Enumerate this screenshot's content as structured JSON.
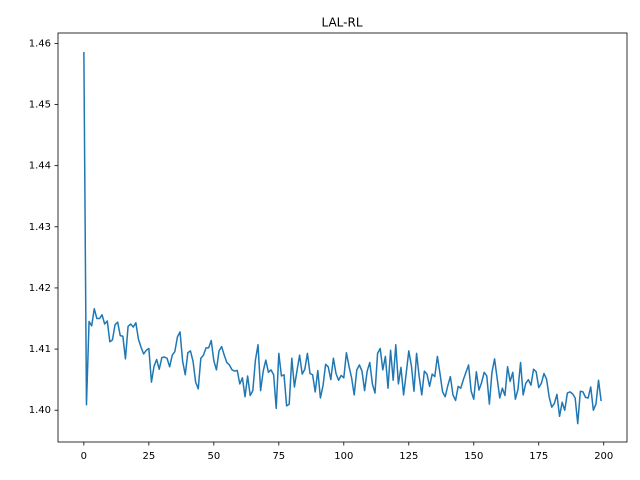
{
  "chart_data": {
    "type": "line",
    "title": "LAL-RL",
    "x": [
      0,
      1,
      2,
      3,
      4,
      5,
      6,
      7,
      8,
      9,
      10,
      11,
      12,
      13,
      14,
      15,
      16,
      17,
      18,
      19,
      20,
      21,
      22,
      23,
      24,
      25,
      26,
      27,
      28,
      29,
      30,
      31,
      32,
      33,
      34,
      35,
      36,
      37,
      38,
      39,
      40,
      41,
      42,
      43,
      44,
      45,
      46,
      47,
      48,
      49,
      50,
      51,
      52,
      53,
      54,
      55,
      56,
      57,
      58,
      59,
      60,
      61,
      62,
      63,
      64,
      65,
      66,
      67,
      68,
      69,
      70,
      71,
      72,
      73,
      74,
      75,
      76,
      77,
      78,
      79,
      80,
      81,
      82,
      83,
      84,
      85,
      86,
      87,
      88,
      89,
      90,
      91,
      92,
      93,
      94,
      95,
      96,
      97,
      98,
      99,
      100,
      101,
      102,
      103,
      104,
      105,
      106,
      107,
      108,
      109,
      110,
      111,
      112,
      113,
      114,
      115,
      116,
      117,
      118,
      119,
      120,
      121,
      122,
      123,
      124,
      125,
      126,
      127,
      128,
      129,
      130,
      131,
      132,
      133,
      134,
      135,
      136,
      137,
      138,
      139,
      140,
      141,
      142,
      143,
      144,
      145,
      146,
      147,
      148,
      149,
      150,
      151,
      152,
      153,
      154,
      155,
      156,
      157,
      158,
      159,
      160,
      161,
      162,
      163,
      164,
      165,
      166,
      167,
      168,
      169,
      170,
      171,
      172,
      173,
      174,
      175,
      176,
      177,
      178,
      179,
      180,
      181,
      182,
      183,
      184,
      185,
      186,
      187,
      188,
      189,
      190,
      191,
      192,
      193,
      194,
      195,
      196,
      197,
      198,
      199
    ],
    "series": [
      {
        "color": "#1f77b4",
        "values": [
          1.4586,
          1.4009,
          1.4145,
          1.4138,
          1.4166,
          1.415,
          1.415,
          1.4156,
          1.4141,
          1.4146,
          1.4112,
          1.4115,
          1.414,
          1.4144,
          1.4122,
          1.4121,
          1.4084,
          1.4137,
          1.4141,
          1.4136,
          1.4143,
          1.4116,
          1.4103,
          1.4092,
          1.4098,
          1.4101,
          1.4046,
          1.4072,
          1.4083,
          1.4067,
          1.4086,
          1.4087,
          1.4085,
          1.4071,
          1.409,
          1.4096,
          1.412,
          1.4128,
          1.408,
          1.4058,
          1.4094,
          1.4097,
          1.408,
          1.4046,
          1.4035,
          1.4085,
          1.409,
          1.4102,
          1.4102,
          1.4114,
          1.4081,
          1.4066,
          1.4097,
          1.4104,
          1.409,
          1.4078,
          1.4074,
          1.4066,
          1.4064,
          1.4065,
          1.4043,
          1.4053,
          1.4022,
          1.4056,
          1.4024,
          1.4032,
          1.4082,
          1.4107,
          1.4032,
          1.4064,
          1.4082,
          1.4062,
          1.4066,
          1.4058,
          1.4003,
          1.4093,
          1.4056,
          1.4058,
          1.4007,
          1.401,
          1.4085,
          1.4038,
          1.4065,
          1.409,
          1.4059,
          1.4067,
          1.4093,
          1.406,
          1.4058,
          1.403,
          1.4065,
          1.402,
          1.404,
          1.4075,
          1.4071,
          1.405,
          1.4085,
          1.406,
          1.4049,
          1.4057,
          1.4053,
          1.4094,
          1.4072,
          1.4053,
          1.4025,
          1.4066,
          1.4074,
          1.4064,
          1.4032,
          1.4064,
          1.4078,
          1.4043,
          1.4028,
          1.4093,
          1.4101,
          1.4066,
          1.4088,
          1.4036,
          1.4098,
          1.4049,
          1.4107,
          1.4043,
          1.407,
          1.4025,
          1.406,
          1.4097,
          1.4073,
          1.4031,
          1.4093,
          1.4055,
          1.4025,
          1.4064,
          1.4059,
          1.4039,
          1.4059,
          1.4055,
          1.4088,
          1.406,
          1.403,
          1.4022,
          1.404,
          1.4055,
          1.4025,
          1.4016,
          1.4039,
          1.4036,
          1.405,
          1.4062,
          1.4074,
          1.4031,
          1.4018,
          1.4063,
          1.4033,
          1.4045,
          1.4062,
          1.4056,
          1.401,
          1.4062,
          1.4084,
          1.4052,
          1.402,
          1.4036,
          1.4024,
          1.4071,
          1.4047,
          1.4062,
          1.4018,
          1.4034,
          1.4078,
          1.4025,
          1.4044,
          1.405,
          1.4041,
          1.4067,
          1.4063,
          1.4037,
          1.4044,
          1.406,
          1.4051,
          1.4022,
          1.4005,
          1.4011,
          1.4026,
          1.399,
          1.4013,
          1.4,
          1.4028,
          1.403,
          1.4027,
          1.402,
          1.3978,
          1.4031,
          1.403,
          1.4021,
          1.402,
          1.4038,
          1.4,
          1.401,
          1.4049,
          1.4015
        ]
      }
    ],
    "xlim": [
      -9.95,
      208.95
    ],
    "ylim": [
      1.3948,
      1.4617
    ],
    "xticks": [
      0,
      25,
      50,
      75,
      100,
      125,
      150,
      175,
      200
    ],
    "yticks": [
      {
        "value": 1.4,
        "label": "1.40"
      },
      1.41,
      1.42,
      1.43,
      1.44,
      1.45,
      1.46
    ],
    "grid": false
  }
}
